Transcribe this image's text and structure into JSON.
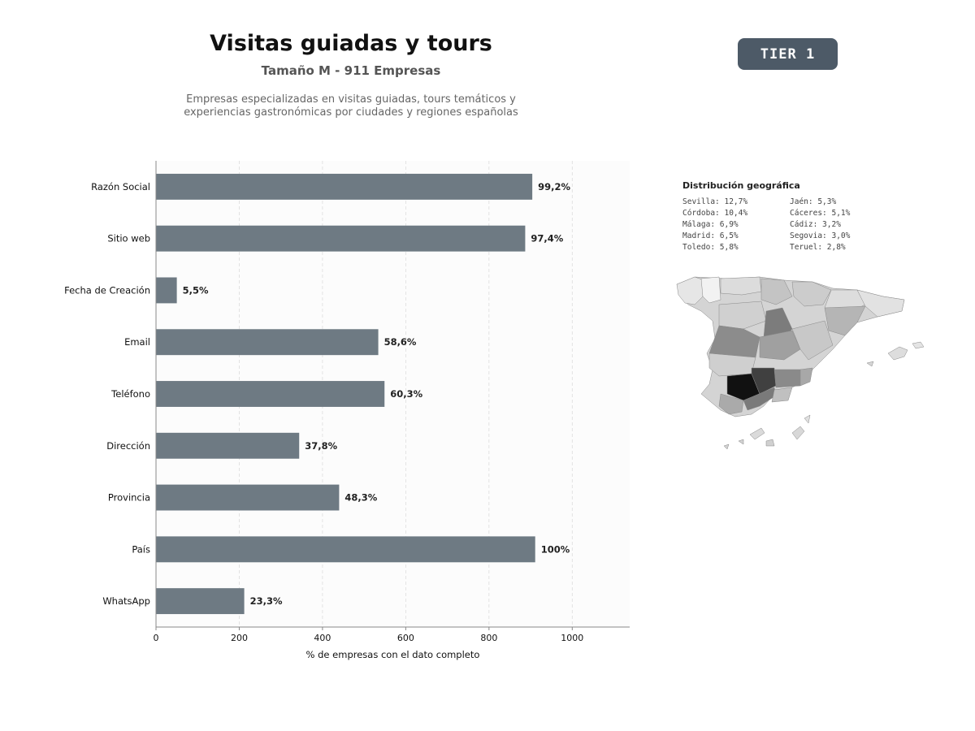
{
  "header": {
    "title": "Visitas guiadas y tours",
    "subtitle": "Tamaño M - 911 Empresas",
    "description_line1": "Empresas especializadas en visitas guiadas, tours temáticos y",
    "description_line2": "experiencias gastronómicas por ciudades y regiones españolas"
  },
  "badge": {
    "label": "TIER 1",
    "color": "#4d5a67"
  },
  "chart_data": {
    "type": "bar",
    "orientation": "horizontal",
    "categories": [
      "Razón Social",
      "Sitio web",
      "Fecha de Creación",
      "Email",
      "Teléfono",
      "Dirección",
      "Provincia",
      "País",
      "WhatsApp"
    ],
    "values": [
      904,
      887,
      50,
      534,
      549,
      344,
      440,
      911,
      212
    ],
    "data_labels": [
      "99,2%",
      "97,4%",
      "5,5%",
      "58,6%",
      "60,3%",
      "37,8%",
      "48,3%",
      "100%",
      "23,3%"
    ],
    "xlabel": "% de empresas con el dato completo",
    "ylabel": "",
    "xlim": [
      0,
      1138
    ],
    "xticks": [
      0,
      200,
      400,
      600,
      800,
      1000
    ],
    "grid": "vertical-dashed",
    "bar_color": "#6e7a83"
  },
  "geo": {
    "title": "Distribución geográfica",
    "col1": [
      "Sevilla: 12,7%",
      "Córdoba: 10,4%",
      "Málaga: 6,9%",
      "Madrid: 6,5%",
      "Toledo: 5,8%"
    ],
    "col2": [
      "Jaén: 5,3%",
      "Cáceres: 5,1%",
      "Cádiz: 3,2%",
      "Segovia: 3,0%",
      "Teruel: 2,8%"
    ]
  }
}
